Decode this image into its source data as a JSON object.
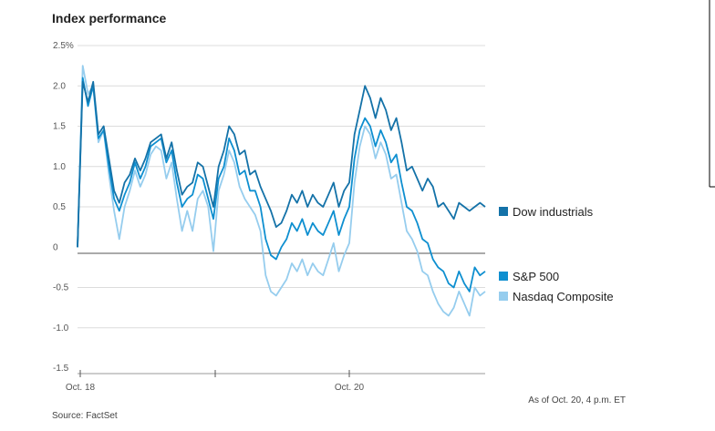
{
  "chart_data": {
    "type": "line",
    "title": "Index performance",
    "y_ticks": [
      "2.5%",
      "2.0",
      "1.5",
      "1.0",
      "0.5",
      "0",
      "-0.5",
      "-1.0",
      "-1.5"
    ],
    "x_ticks": [
      "Oct. 18",
      "Oct. 20"
    ],
    "ylim": [
      -1.5,
      2.5
    ],
    "grid": true,
    "legend_position": "right",
    "series": [
      {
        "name": "Dow industrials",
        "color": "#1472a8",
        "values": [
          0.0,
          2.05,
          1.8,
          2.05,
          1.4,
          1.5,
          1.1,
          0.7,
          0.55,
          0.8,
          0.9,
          1.1,
          0.95,
          1.1,
          1.3,
          1.35,
          1.4,
          1.1,
          1.3,
          0.95,
          0.65,
          0.75,
          0.8,
          1.05,
          1.0,
          0.75,
          0.5,
          1.0,
          1.2,
          1.5,
          1.4,
          1.15,
          1.2,
          0.9,
          0.95,
          0.75,
          0.6,
          0.45,
          0.25,
          0.3,
          0.45,
          0.65,
          0.55,
          0.7,
          0.5,
          0.65,
          0.55,
          0.5,
          0.65,
          0.8,
          0.5,
          0.7,
          0.8,
          1.4,
          1.7,
          2.0,
          1.85,
          1.6,
          1.85,
          1.7,
          1.45,
          1.6,
          1.3,
          0.95,
          1.0,
          0.85,
          0.7,
          0.85,
          0.75,
          0.5,
          0.55,
          0.45,
          0.35,
          0.55,
          0.5,
          0.45,
          0.5,
          0.55,
          0.5
        ]
      },
      {
        "name": "S&P 500",
        "color": "#0e8fd0",
        "values": [
          0.0,
          2.1,
          1.75,
          2.0,
          1.35,
          1.45,
          1.0,
          0.6,
          0.45,
          0.65,
          0.8,
          1.05,
          0.85,
          1.0,
          1.25,
          1.3,
          1.35,
          1.05,
          1.2,
          0.8,
          0.5,
          0.6,
          0.65,
          0.9,
          0.85,
          0.6,
          0.35,
          0.85,
          1.0,
          1.35,
          1.2,
          0.9,
          0.95,
          0.7,
          0.7,
          0.5,
          0.1,
          -0.1,
          -0.15,
          0.0,
          0.1,
          0.3,
          0.2,
          0.35,
          0.15,
          0.3,
          0.2,
          0.15,
          0.3,
          0.45,
          0.15,
          0.35,
          0.5,
          1.1,
          1.45,
          1.6,
          1.5,
          1.25,
          1.45,
          1.3,
          1.05,
          1.15,
          0.8,
          0.5,
          0.45,
          0.3,
          0.1,
          0.05,
          -0.15,
          -0.25,
          -0.3,
          -0.45,
          -0.5,
          -0.3,
          -0.45,
          -0.55,
          -0.25,
          -0.35,
          -0.3
        ]
      },
      {
        "name": "Nasdaq Composite",
        "color": "#96cdee",
        "values": [
          0.0,
          2.25,
          1.9,
          2.0,
          1.3,
          1.45,
          0.9,
          0.45,
          0.1,
          0.5,
          0.7,
          0.95,
          0.75,
          0.9,
          1.15,
          1.25,
          1.2,
          0.85,
          1.05,
          0.6,
          0.2,
          0.45,
          0.2,
          0.6,
          0.7,
          0.5,
          -0.05,
          0.7,
          0.9,
          1.2,
          1.05,
          0.75,
          0.6,
          0.5,
          0.4,
          0.2,
          -0.35,
          -0.55,
          -0.6,
          -0.5,
          -0.4,
          -0.2,
          -0.3,
          -0.15,
          -0.35,
          -0.2,
          -0.3,
          -0.35,
          -0.15,
          0.05,
          -0.3,
          -0.1,
          0.05,
          0.8,
          1.25,
          1.5,
          1.4,
          1.1,
          1.3,
          1.15,
          0.85,
          0.9,
          0.55,
          0.2,
          0.1,
          -0.05,
          -0.3,
          -0.35,
          -0.55,
          -0.7,
          -0.8,
          -0.85,
          -0.75,
          -0.55,
          -0.7,
          -0.85,
          -0.5,
          -0.6,
          -0.55
        ]
      }
    ]
  },
  "notes": {
    "as_of": "As of Oct. 20, 4 p.m. ET",
    "source": "Source: FactSet"
  }
}
